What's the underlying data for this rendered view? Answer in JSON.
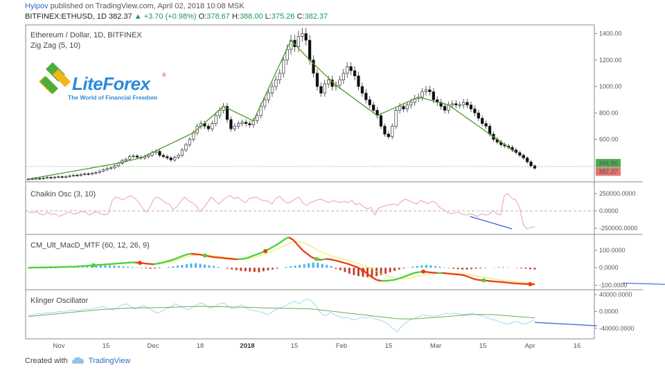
{
  "header": {
    "author": "Hyipov",
    "published": "published on TradingView.com, April 02, 2018 10:08 MSK",
    "symbol": "BITFINEX:ETHUSD, 1D",
    "last": "382.37",
    "change": "▲ +3.70 (+0.98%)",
    "o_label": "O:",
    "o_val": "378.67",
    "h_label": "H:",
    "h_val": "388.00",
    "l_label": "L:",
    "l_val": "375.26",
    "c_label": "C:",
    "c_val": "382.37"
  },
  "logo": {
    "brand_lite": "Lite",
    "brand_forex": "Forex",
    "tagline": "The World of Financial Freedom",
    "reg": "®"
  },
  "footer": {
    "created": "Created with",
    "tv": "TradingView",
    "icon": "tradingview-cloud-icon"
  },
  "colors": {
    "up": "#2e2e2e",
    "down": "#222222",
    "zigzag": "#4c9a2a",
    "chaikin": "#f0a0a0",
    "hist_pos": "#3ab0f0",
    "hist_neg": "#c0392b",
    "macd_up": "#4cd137",
    "macd_down": "#e84118",
    "signal": "#f5e642",
    "klinger": "#9fd7ec",
    "klinger_signal": "#6ab04c",
    "divergence": "#3b5bdb"
  },
  "chart_data": [
    {
      "type": "candlestick",
      "title": "Ethereum / Dollar, 1D, BITFINEX",
      "indicator": "Zig Zag (5, 10)",
      "y_ticks": [
        "1400.00",
        "1200.00",
        "1000.00",
        "800.00",
        "600.00"
      ],
      "y_tick_values": [
        1400,
        1200,
        1000,
        800,
        600
      ],
      "ylim": [
        300,
        1450
      ],
      "price_labels": [
        {
          "text": "394.86",
          "value": 394.86,
          "color": "#4caf50"
        },
        {
          "text": "382.37",
          "value": 382.37,
          "color": "#e57373"
        }
      ],
      "x_labels": [
        "Nov",
        "15",
        "Dec",
        "18",
        "2018",
        "15",
        "Feb",
        "15",
        "Mar",
        "15",
        "Apr",
        "16"
      ],
      "closes": [
        300,
        302,
        305,
        304,
        308,
        312,
        310,
        315,
        318,
        314,
        320,
        325,
        330,
        328,
        335,
        340,
        338,
        345,
        350,
        360,
        370,
        380,
        385,
        400,
        420,
        440,
        450,
        470,
        475,
        465,
        460,
        470,
        480,
        500,
        510,
        480,
        470,
        460,
        445,
        465,
        480,
        520,
        560,
        600,
        650,
        700,
        720,
        700,
        680,
        720,
        780,
        820,
        850,
        750,
        680,
        700,
        720,
        730,
        720,
        710,
        740,
        780,
        850,
        900,
        950,
        1000,
        1050,
        1100,
        1200,
        1280,
        1350,
        1300,
        1380,
        1400,
        1350,
        1200,
        1100,
        1000,
        950,
        1020,
        1050,
        1000,
        1010,
        1050,
        1100,
        1150,
        1120,
        1080,
        1000,
        950,
        900,
        860,
        820,
        780,
        700,
        640,
        620,
        700,
        820,
        850,
        830,
        860,
        880,
        910,
        920,
        960,
        975,
        960,
        900,
        880,
        850,
        820,
        860,
        870,
        860,
        860,
        880,
        860,
        830,
        800,
        760,
        720,
        700,
        640,
        600,
        580,
        560,
        550,
        540,
        520,
        500,
        480,
        460,
        430,
        400,
        382
      ]
    },
    {
      "type": "line",
      "title": "Chaikin Osc (3, 10)",
      "y_ticks": [
        "250000.0000",
        "0.0000",
        "-250000.0000"
      ],
      "y_tick_values": [
        250000,
        0,
        -250000
      ],
      "ylim": [
        -300000,
        380000
      ],
      "values": [
        -20000,
        -30000,
        -10000,
        -40000,
        -60000,
        -20000,
        -50000,
        -40000,
        -80000,
        -60000,
        -30000,
        -20000,
        -50000,
        -30000,
        -10000,
        -20000,
        -60000,
        -30000,
        -10000,
        -40000,
        -60000,
        -40000,
        150000,
        200000,
        180000,
        160000,
        200000,
        220000,
        180000,
        120000,
        40000,
        -20000,
        60000,
        180000,
        200000,
        160000,
        120000,
        100000,
        20000,
        60000,
        140000,
        200000,
        150000,
        120000,
        80000,
        -10000,
        40000,
        120000,
        200000,
        150000,
        100000,
        150000,
        200000,
        220000,
        180000,
        200000,
        150000,
        120000,
        180000,
        190000,
        200000,
        160000,
        150000,
        140000,
        100000,
        180000,
        210000,
        150000,
        110000,
        130000,
        170000,
        200000,
        120000,
        80000,
        120000,
        140000,
        160000,
        170000,
        140000,
        120000,
        150000,
        130000,
        120000,
        140000,
        120000,
        150000,
        90000,
        110000,
        60000,
        30000,
        50000,
        -60000,
        40000,
        60000,
        80000,
        90000,
        100000,
        80000,
        140000,
        170000,
        150000,
        120000,
        100000,
        150000,
        130000,
        100000,
        140000,
        120000,
        50000,
        20000,
        -20000,
        -40000,
        -30000,
        -20000,
        -50000,
        -60000,
        -40000,
        -60000,
        -80000,
        -40000,
        -60000,
        -50000,
        10000,
        -40000,
        -60000,
        220000,
        250000,
        180000,
        160000,
        50000,
        -200000,
        -260000,
        -240000,
        -230000
      ],
      "divergence": {
        "x": [
          116,
          127
        ],
        "y": [
          -80000,
          -260000
        ]
      }
    },
    {
      "type": "bar+line",
      "title": "CM_Ult_MacD_MTF (60, 12, 26, 9)",
      "y_ticks": [
        "100.0000",
        "0.0000",
        "-100.0000"
      ],
      "y_tick_values": [
        100,
        0,
        -100
      ],
      "ylim": [
        -110,
        175
      ],
      "macd": [
        0,
        1,
        1,
        2,
        2,
        3,
        3,
        4,
        5,
        6,
        6,
        8,
        10,
        12,
        14,
        16,
        18,
        20,
        22,
        24,
        26,
        28,
        30,
        30,
        28,
        25,
        22,
        20,
        25,
        30,
        38,
        45,
        55,
        65,
        75,
        80,
        78,
        75,
        70,
        65,
        60,
        58,
        55,
        52,
        50,
        48,
        50,
        55,
        65,
        75,
        85,
        95,
        110,
        125,
        140,
        160,
        175,
        160,
        130,
        100,
        80,
        60,
        50,
        45,
        50,
        48,
        42,
        35,
        28,
        20,
        10,
        0,
        -15,
        -35,
        -55,
        -70,
        -75,
        -75,
        -72,
        -68,
        -60,
        -50,
        -40,
        -30,
        -25,
        -22,
        -25,
        -28,
        -30,
        -30,
        -32,
        -35,
        -38,
        -40,
        -45,
        -55,
        -65,
        -70,
        -72,
        -75,
        -78,
        -80,
        -82,
        -85,
        -88,
        -90,
        -92,
        -93,
        -94,
        -95
      ],
      "signal": [
        0,
        0,
        1,
        1,
        2,
        2,
        3,
        3,
        4,
        5,
        5,
        6,
        8,
        10,
        12,
        14,
        16,
        18,
        20,
        22,
        24,
        26,
        28,
        29,
        29,
        27,
        25,
        23,
        23,
        26,
        30,
        36,
        44,
        52,
        60,
        68,
        72,
        73,
        72,
        70,
        67,
        64,
        61,
        58,
        55,
        52,
        51,
        52,
        56,
        62,
        70,
        78,
        88,
        100,
        112,
        125,
        138,
        148,
        150,
        145,
        135,
        120,
        105,
        90,
        80,
        70,
        62,
        55,
        47,
        40,
        32,
        24,
        15,
        5,
        -8,
        -22,
        -35,
        -45,
        -52,
        -58,
        -62,
        -63,
        -60,
        -55,
        -48,
        -42,
        -37,
        -34,
        -32,
        -31,
        -31,
        -32,
        -33,
        -35,
        -37,
        -40,
        -45,
        -50,
        -55,
        -60,
        -64,
        -68,
        -72,
        -75,
        -78,
        -81,
        -84,
        -86,
        -88,
        -90
      ],
      "histogram": [
        -2,
        -3,
        -3,
        -4,
        -4,
        -3,
        -2,
        -1,
        0,
        1,
        2,
        3,
        4,
        6,
        8,
        10,
        12,
        14,
        14,
        12,
        10,
        8,
        6,
        4,
        2,
        -2,
        -4,
        -6,
        -5,
        -3,
        0,
        4,
        8,
        12,
        16,
        20,
        24,
        26,
        22,
        18,
        14,
        10,
        5,
        0,
        -5,
        -10,
        -14,
        -18,
        -20,
        -22,
        -24,
        -26,
        -20,
        -15,
        -10,
        -5,
        0,
        4,
        8,
        12,
        16,
        20,
        26,
        30,
        28,
        22,
        16,
        10,
        -6,
        -14,
        -24,
        -34,
        -42,
        -48,
        -52,
        -54,
        -52,
        -48,
        -42,
        -34,
        -26,
        -18,
        -10,
        -4,
        2,
        6,
        10,
        14,
        16,
        14,
        10,
        6,
        2,
        -2,
        -6,
        -8,
        -10,
        -10,
        -8,
        -6,
        -4,
        -2,
        0,
        2,
        4,
        4,
        2,
        0,
        -2,
        -4,
        -6,
        -8,
        -10
      ],
      "dots": [
        {
          "i": 14,
          "c": "green"
        },
        {
          "i": 24,
          "c": "red"
        },
        {
          "i": 38,
          "c": "green"
        },
        {
          "i": 51,
          "c": "red"
        },
        {
          "i": 62,
          "c": "green"
        },
        {
          "i": 72,
          "c": "red"
        },
        {
          "i": 85,
          "c": "red"
        },
        {
          "i": 98,
          "c": "green"
        },
        {
          "i": 108,
          "c": "red"
        },
        {
          "i": 114,
          "c": "green"
        },
        {
          "i": 126,
          "c": "green"
        },
        {
          "i": 131,
          "c": "red"
        }
      ],
      "divergence": {
        "x": [
          128,
          141
        ],
        "y": [
          -88,
          -98
        ]
      }
    },
    {
      "type": "line",
      "title": "Klinger Oscillator",
      "y_ticks": [
        "40000.0000",
        "0.0000",
        "-40000.0000"
      ],
      "y_tick_values": [
        40000,
        0,
        -40000
      ],
      "ylim": [
        -60000,
        45000
      ],
      "values": [
        -10000,
        -8000,
        -5000,
        -6000,
        -3000,
        -4000,
        -2000,
        0,
        -1000,
        2000,
        3000,
        1000,
        4000,
        6000,
        5000,
        8000,
        10000,
        12000,
        6000,
        4000,
        8000,
        15000,
        18000,
        12000,
        6000,
        10000,
        14000,
        8000,
        2000,
        -4000,
        0,
        6000,
        10000,
        18000,
        14000,
        8000,
        4000,
        10000,
        16000,
        20000,
        14000,
        8000,
        12000,
        18000,
        20000,
        12000,
        6000,
        10000,
        16000,
        8000,
        4000,
        2000,
        0,
        -4000,
        -8000,
        0,
        6000,
        10000,
        14000,
        20000,
        24000,
        18000,
        26000,
        30000,
        22000,
        10000,
        -6000,
        -10000,
        -2000,
        -8000,
        -12000,
        -16000,
        -14000,
        -20000,
        -18000,
        -14000,
        -16000,
        -12000,
        -18000,
        -20000,
        -24000,
        -30000,
        -40000,
        -48000,
        -36000,
        -26000,
        -20000,
        -16000,
        -12000,
        -8000,
        -10000,
        -12000,
        -10000,
        -8000,
        -4000,
        -6000,
        -4000,
        -6000,
        -8000,
        -6000,
        -4000,
        -8000,
        -10000,
        -14000,
        -18000,
        -20000,
        -24000,
        -28000,
        -30000,
        -26000,
        -24000,
        -28000,
        -30000,
        -24000,
        -20000
      ],
      "signal": [
        -12000,
        -11000,
        -10000,
        -9000,
        -8000,
        -7000,
        -6000,
        -5000,
        -4000,
        -3000,
        -2000,
        -1000,
        0,
        1000,
        2000,
        3000,
        4000,
        5000,
        5500,
        6000,
        6500,
        7000,
        7500,
        8000,
        8200,
        8400,
        8600,
        8800,
        9000,
        9200,
        9400,
        9600,
        10000,
        10400,
        10800,
        11200,
        11400,
        11600,
        11800,
        12000,
        12000,
        11800,
        11600,
        11400,
        11200,
        11000,
        10800,
        10600,
        10400,
        10200,
        10000,
        9600,
        9200,
        8800,
        8400,
        8000,
        7800,
        7600,
        7400,
        7200,
        7000,
        6800,
        6600,
        6400,
        6000,
        5200,
        4000,
        2800,
        1600,
        400,
        -800,
        -2000,
        -3200,
        -4400,
        -5600,
        -6800,
        -8000,
        -9200,
        -10400,
        -11600,
        -12800,
        -14000,
        -15200,
        -16400,
        -17200,
        -17600,
        -17800,
        -17600,
        -17200,
        -16800,
        -16000,
        -15200,
        -14400,
        -13600,
        -12800,
        -12000,
        -11200,
        -10400,
        -9600,
        -8800,
        -8000,
        -7600,
        -7200,
        -7000,
        -7200,
        -7600,
        -8000,
        -8800,
        -9600,
        -10400,
        -11200,
        -12000,
        -12800,
        -13600,
        -14400,
        -15200
      ],
      "divergence": {
        "x": [
          114,
          128
        ],
        "y": [
          -26000,
          -34000
        ]
      }
    }
  ]
}
